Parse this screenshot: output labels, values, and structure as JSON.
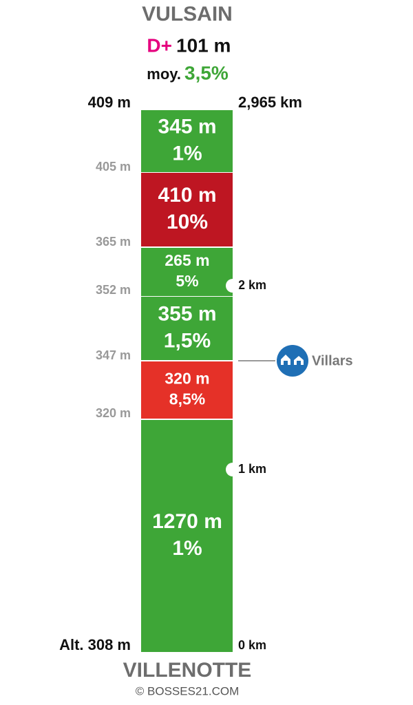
{
  "header": {
    "title": "VULSAIN",
    "gain_label": "D+",
    "gain": "101 m",
    "avg_label": "moy.",
    "avg": "3,5%"
  },
  "segments": [
    {
      "length": "345 m",
      "grade": "1%",
      "color": "#3ea637"
    },
    {
      "length": "410 m",
      "grade": "10%",
      "color": "#be1622"
    },
    {
      "length": "265 m",
      "grade": "5%",
      "color": "#3ea637"
    },
    {
      "length": "355 m",
      "grade": "1,5%",
      "color": "#3ea637"
    },
    {
      "length": "320 m",
      "grade": "8,5%",
      "color": "#e53128"
    },
    {
      "length": "1270 m",
      "grade": "1%",
      "color": "#3ea637"
    }
  ],
  "altitudes": [
    "409 m",
    "405 m",
    "365 m",
    "352 m",
    "347 m",
    "320 m",
    "Alt. 308 m"
  ],
  "distances": [
    "2,965 km",
    "2 km",
    "1 km",
    "0 km"
  ],
  "place": "Villars",
  "footer": {
    "title": "VILLENOTTE",
    "credit": "© BOSSES21.COM"
  }
}
